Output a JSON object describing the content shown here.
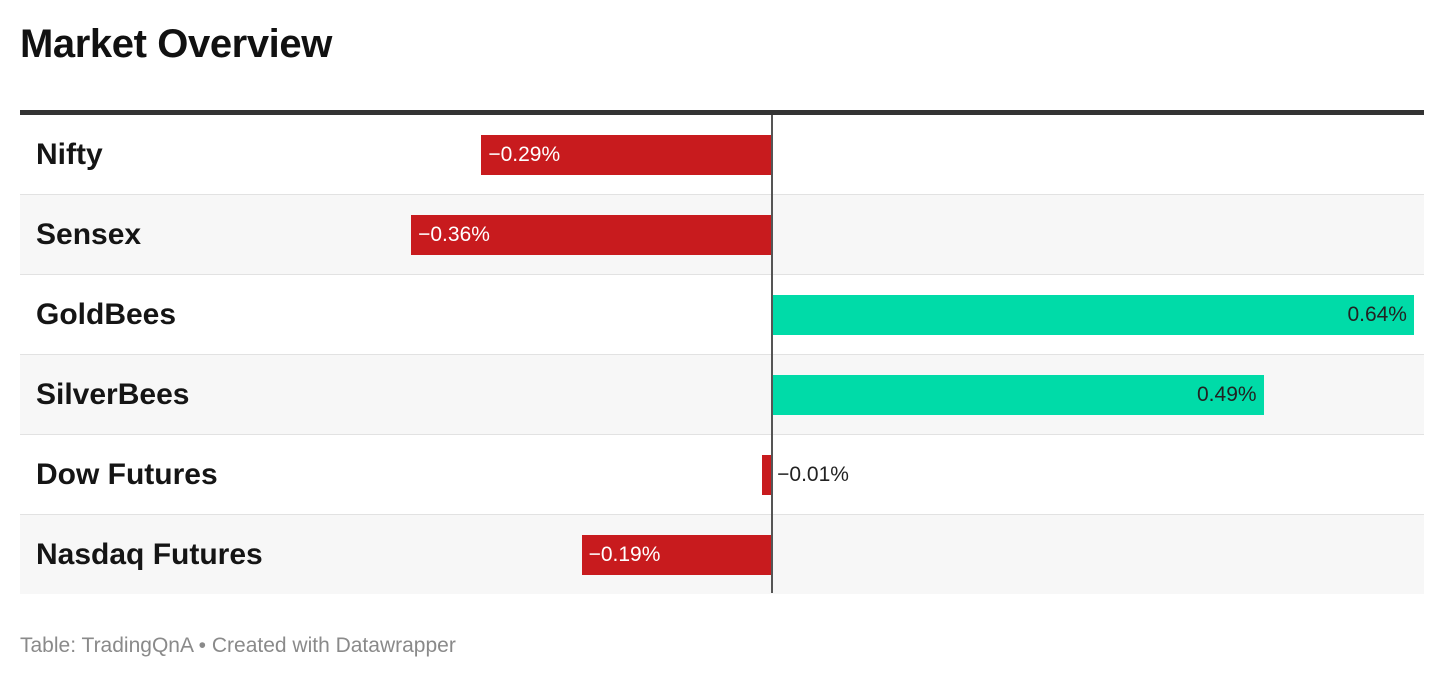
{
  "title": "Market Overview",
  "footer": {
    "source_label": "Table:",
    "source": "TradingQnA",
    "separator": "•",
    "credit": "Created with Datawrapper"
  },
  "colors": {
    "negative": "#c81b1e",
    "positive": "#00dba8",
    "negative_label_inside": "#ffffff",
    "positive_label_inside": "#222222",
    "label_outside": "#222222"
  },
  "chart_data": {
    "type": "bar",
    "orientation": "horizontal",
    "title": "Market Overview",
    "categories": [
      "Nifty",
      "Sensex",
      "GoldBees",
      "SilverBees",
      "Dow Futures",
      "Nasdaq Futures"
    ],
    "values": [
      -0.29,
      -0.36,
      0.64,
      0.49,
      -0.01,
      -0.19
    ],
    "value_labels": [
      "−0.29%",
      "−0.36%",
      "0.64%",
      "0.49%",
      "−0.01%",
      "−0.19%"
    ],
    "unit": "%",
    "xlim": [
      -0.75,
      0.65
    ],
    "grid": false,
    "legend": "none"
  }
}
